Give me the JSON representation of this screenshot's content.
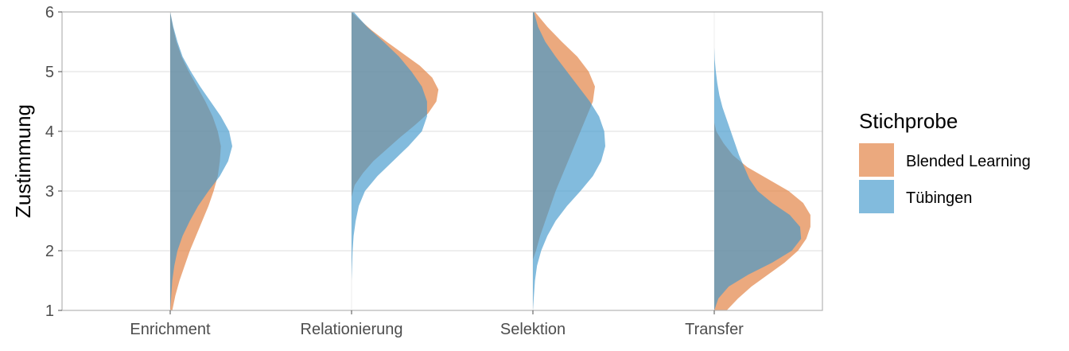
{
  "chart_data": {
    "type": "violin",
    "orientation": "split-half-violin",
    "categories": [
      "Enrichment",
      "Relationierung",
      "Selektion",
      "Transfer"
    ],
    "ylabel": "Zustimmung",
    "xlabel": "",
    "ylim": [
      1,
      6
    ],
    "yticks": [
      1,
      2,
      3,
      4,
      5,
      6
    ],
    "grid": true,
    "legend": {
      "title": "Stichprobe",
      "placement": "right"
    },
    "series": [
      {
        "name": "Blended Learning",
        "color": "#E07B39",
        "opacity": 0.65,
        "densities": [
          {
            "category": "Enrichment",
            "y": [
              1.0,
              1.25,
              1.5,
              1.75,
              2.0,
              2.25,
              2.5,
              2.75,
              3.0,
              3.25,
              3.5,
              3.75,
              4.0,
              4.25,
              4.5,
              4.75,
              5.0,
              5.25,
              5.5,
              5.75,
              6.0
            ],
            "density": [
              0.02,
              0.05,
              0.09,
              0.14,
              0.19,
              0.25,
              0.31,
              0.37,
              0.42,
              0.46,
              0.48,
              0.49,
              0.46,
              0.41,
              0.34,
              0.26,
              0.18,
              0.11,
              0.06,
              0.025,
              0.0
            ]
          },
          {
            "category": "Relationierung",
            "y": [
              2.9,
              3.1,
              3.3,
              3.5,
              3.7,
              3.9,
              4.1,
              4.3,
              4.5,
              4.7,
              4.9,
              5.1,
              5.3,
              5.5,
              5.7,
              5.9,
              6.0
            ],
            "density": [
              0.0,
              0.03,
              0.11,
              0.21,
              0.34,
              0.47,
              0.61,
              0.74,
              0.82,
              0.84,
              0.78,
              0.66,
              0.5,
              0.34,
              0.19,
              0.06,
              0.0
            ]
          },
          {
            "category": "Selektion",
            "y": [
              1.85,
              2.0,
              2.25,
              2.5,
              2.75,
              3.0,
              3.25,
              3.5,
              3.75,
              4.0,
              4.25,
              4.5,
              4.75,
              5.0,
              5.25,
              5.5,
              5.75,
              6.0
            ],
            "density": [
              0.0,
              0.03,
              0.07,
              0.12,
              0.17,
              0.22,
              0.28,
              0.34,
              0.4,
              0.46,
              0.52,
              0.58,
              0.6,
              0.54,
              0.43,
              0.28,
              0.14,
              0.02
            ]
          },
          {
            "category": "Transfer",
            "y": [
              1.0,
              1.2,
              1.4,
              1.6,
              1.8,
              2.0,
              2.2,
              2.4,
              2.6,
              2.8,
              3.0,
              3.2,
              3.4,
              3.6,
              3.8,
              4.0,
              4.15
            ],
            "density": [
              0.12,
              0.23,
              0.36,
              0.52,
              0.68,
              0.81,
              0.89,
              0.93,
              0.93,
              0.86,
              0.72,
              0.52,
              0.32,
              0.18,
              0.09,
              0.02,
              0.0
            ]
          }
        ]
      },
      {
        "name": "Tübingen",
        "color": "#3F97CB",
        "opacity": 0.65,
        "densities": [
          {
            "category": "Enrichment",
            "y": [
              1.0,
              1.25,
              1.5,
              1.75,
              2.0,
              2.25,
              2.5,
              2.75,
              3.0,
              3.25,
              3.5,
              3.75,
              4.0,
              4.25,
              4.5,
              4.75,
              5.0,
              5.25,
              5.5,
              5.75,
              6.0
            ],
            "density": [
              0.0,
              0.01,
              0.02,
              0.04,
              0.07,
              0.12,
              0.19,
              0.27,
              0.37,
              0.48,
              0.56,
              0.6,
              0.57,
              0.49,
              0.39,
              0.29,
              0.2,
              0.12,
              0.07,
              0.03,
              0.0
            ]
          },
          {
            "category": "Relationierung",
            "y": [
              1.0,
              1.5,
              2.0,
              2.25,
              2.5,
              2.75,
              3.0,
              3.25,
              3.5,
              3.75,
              4.0,
              4.25,
              4.5,
              4.75,
              5.0,
              5.25,
              5.5,
              5.75,
              6.0
            ],
            "density": [
              0.0,
              0.0,
              0.01,
              0.02,
              0.04,
              0.07,
              0.13,
              0.25,
              0.4,
              0.55,
              0.68,
              0.73,
              0.73,
              0.68,
              0.58,
              0.46,
              0.31,
              0.15,
              0.02
            ]
          },
          {
            "category": "Selektion",
            "y": [
              1.0,
              1.25,
              1.5,
              1.75,
              2.0,
              2.25,
              2.5,
              2.75,
              3.0,
              3.25,
              3.5,
              3.75,
              4.0,
              4.25,
              4.5,
              4.75,
              5.0,
              5.25,
              5.5,
              5.75,
              6.0
            ],
            "density": [
              0.0,
              0.01,
              0.02,
              0.04,
              0.08,
              0.14,
              0.22,
              0.33,
              0.46,
              0.58,
              0.66,
              0.7,
              0.69,
              0.64,
              0.55,
              0.44,
              0.33,
              0.22,
              0.12,
              0.05,
              0.01
            ]
          },
          {
            "category": "Transfer",
            "y": [
              1.0,
              1.2,
              1.4,
              1.6,
              1.8,
              2.0,
              2.2,
              2.4,
              2.6,
              2.8,
              3.0,
              3.2,
              3.4,
              3.6,
              3.8,
              4.0,
              4.2,
              4.4,
              4.6,
              4.8,
              5.0,
              5.2,
              5.4
            ],
            "density": [
              0.0,
              0.04,
              0.14,
              0.33,
              0.56,
              0.75,
              0.84,
              0.83,
              0.73,
              0.56,
              0.42,
              0.34,
              0.29,
              0.24,
              0.2,
              0.16,
              0.12,
              0.08,
              0.05,
              0.03,
              0.015,
              0.005,
              0.0
            ]
          }
        ]
      }
    ]
  }
}
